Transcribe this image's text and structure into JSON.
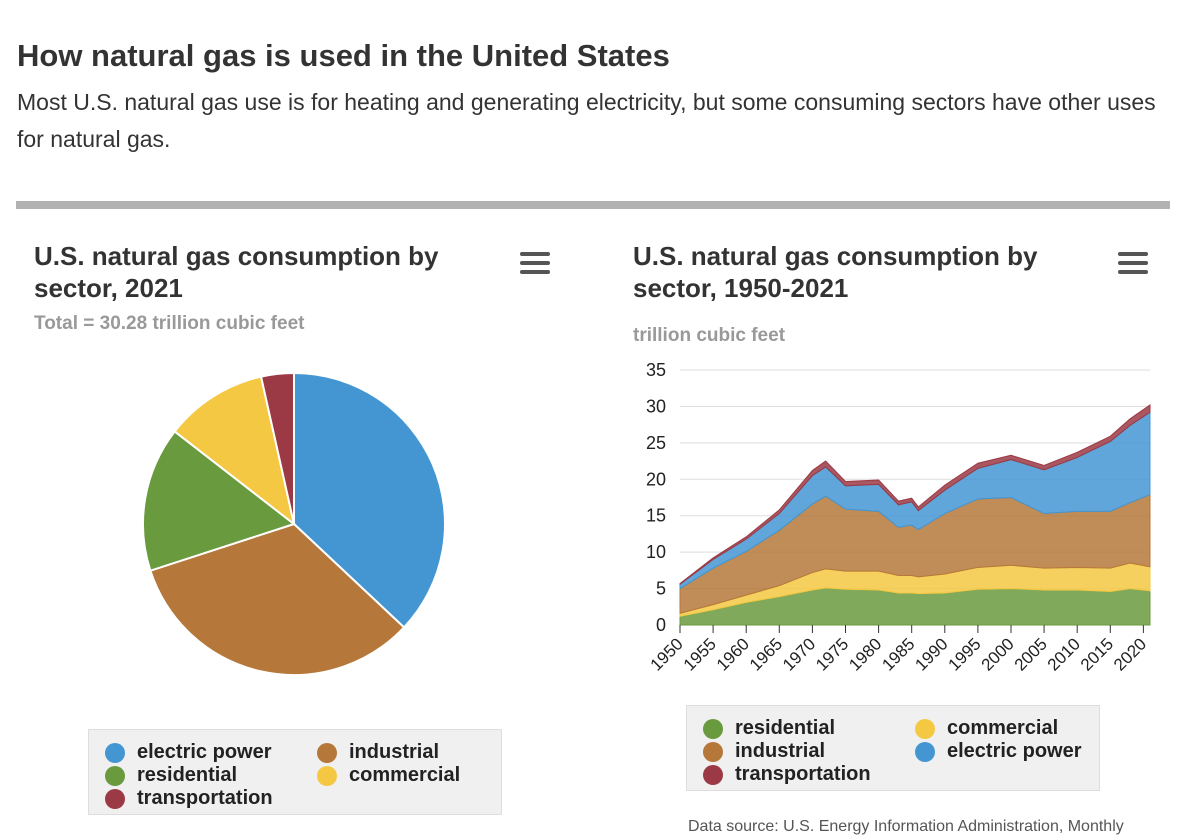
{
  "header": {
    "title": "How natural gas is used in the United States",
    "description": "Most U.S. natural gas use is for heating and generating electricity, but some consuming sectors have other uses for natural gas."
  },
  "colors": {
    "electric_power": "#4496d3",
    "industrial": "#b5783a",
    "residential": "#6a9a3e",
    "commercial": "#f4c842",
    "transportation": "#9b3a45"
  },
  "chart_data": [
    {
      "type": "pie",
      "title": "U.S. natural gas consumption by sector, 2021",
      "subtitle": "Total = 30.28 trillion cubic feet",
      "slices": [
        {
          "name": "electric power",
          "value": 37
        },
        {
          "name": "industrial",
          "value": 33
        },
        {
          "name": "residential",
          "value": 15.5
        },
        {
          "name": "commercial",
          "value": 11
        },
        {
          "name": "transportation",
          "value": 3.5
        }
      ],
      "legend": [
        "electric power",
        "industrial",
        "residential",
        "commercial",
        "transportation"
      ]
    },
    {
      "type": "area",
      "title": "U.S. natural gas consumption by sector, 1950-2021",
      "ylabel": "trillion cubic feet",
      "ylim": [
        0,
        35
      ],
      "yticks": [
        0,
        5,
        10,
        15,
        20,
        25,
        30,
        35
      ],
      "xlim": [
        1950,
        2021
      ],
      "xticks": [
        1950,
        1955,
        1960,
        1965,
        1970,
        1975,
        1980,
        1985,
        1990,
        1995,
        2000,
        2005,
        2010,
        2015,
        2020
      ],
      "x": [
        1950,
        1955,
        1960,
        1965,
        1970,
        1972,
        1975,
        1980,
        1983,
        1985,
        1986,
        1990,
        1995,
        2000,
        2005,
        2010,
        2015,
        2018,
        2021
      ],
      "series": [
        {
          "name": "residential",
          "values": [
            1.2,
            2.1,
            3.1,
            3.9,
            4.8,
            5.1,
            4.9,
            4.8,
            4.4,
            4.4,
            4.3,
            4.4,
            4.9,
            5.0,
            4.8,
            4.8,
            4.6,
            5.0,
            4.7
          ]
        },
        {
          "name": "commercial",
          "values": [
            0.4,
            0.7,
            1.0,
            1.5,
            2.4,
            2.6,
            2.5,
            2.6,
            2.4,
            2.4,
            2.3,
            2.6,
            3.0,
            3.2,
            3.0,
            3.1,
            3.2,
            3.5,
            3.3
          ]
        },
        {
          "name": "industrial",
          "values": [
            3.4,
            5.0,
            6.0,
            7.6,
            9.4,
            10.0,
            8.5,
            8.2,
            6.6,
            6.9,
            6.5,
            8.3,
            9.4,
            9.3,
            7.5,
            7.7,
            7.8,
            8.3,
            9.9
          ]
        },
        {
          "name": "electric power",
          "values": [
            0.6,
            1.2,
            1.7,
            2.3,
            3.9,
            4.0,
            3.2,
            3.7,
            3.1,
            3.2,
            2.6,
            3.2,
            4.2,
            5.2,
            6.0,
            7.4,
            9.6,
            10.6,
            11.3
          ]
        },
        {
          "name": "transportation",
          "values": [
            0.1,
            0.2,
            0.3,
            0.5,
            0.7,
            0.8,
            0.6,
            0.6,
            0.5,
            0.5,
            0.5,
            0.7,
            0.7,
            0.6,
            0.6,
            0.7,
            0.7,
            0.9,
            1.0
          ]
        }
      ],
      "legend": [
        "residential",
        "commercial",
        "industrial",
        "electric power",
        "transportation"
      ]
    }
  ],
  "footnote": "Data source: U.S. Energy Information Administration, Monthly"
}
